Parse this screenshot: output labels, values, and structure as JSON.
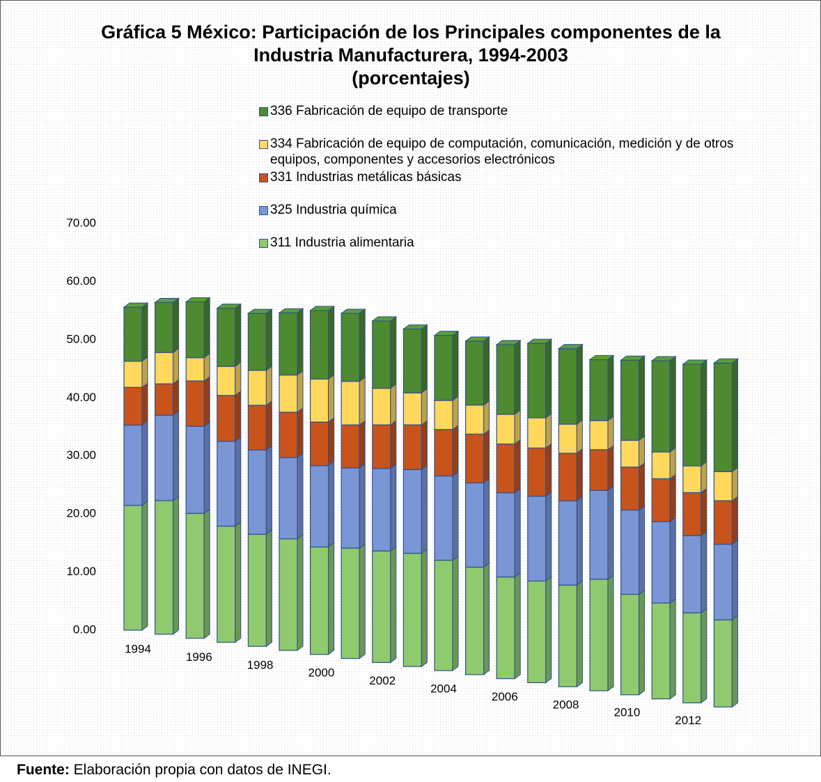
{
  "chart_data": {
    "type": "bar3d_stacked",
    "title": "Gráfica 5 México: Participación de los Principales componentes de la Industria Manufacturera, 1994-2003",
    "subtitle": "(porcentajes)",
    "categories": [
      "1994",
      null,
      "1996",
      null,
      "1998",
      null,
      "2000",
      null,
      "2002",
      null,
      "2004",
      null,
      "2006",
      null,
      "2008",
      null,
      "2010",
      null,
      "2012",
      null
    ],
    "series": [
      {
        "name": "311 Industria alimentaria",
        "color": "#8fca6e",
        "values": [
          21.5,
          23.0,
          21.5,
          20.0,
          19.3,
          19.2,
          18.5,
          19.0,
          19.2,
          19.5,
          19.0,
          18.5,
          17.5,
          17.5,
          17.5,
          19.2,
          17.3,
          16.5,
          15.5,
          15.0
        ]
      },
      {
        "name": "325 Industria química",
        "color": "#7b96d4",
        "values": [
          13.8,
          14.7,
          15.0,
          14.6,
          14.5,
          14.0,
          14.0,
          13.8,
          14.2,
          14.4,
          14.5,
          14.5,
          14.5,
          14.6,
          14.5,
          15.3,
          14.5,
          14.0,
          13.3,
          13.0
        ]
      },
      {
        "name": "331 Industrias metálicas básicas",
        "color": "#c8541c",
        "values": [
          6.5,
          5.4,
          7.8,
          7.9,
          7.7,
          7.8,
          7.5,
          7.4,
          7.5,
          7.7,
          8.0,
          8.4,
          8.4,
          8.3,
          8.2,
          7.0,
          7.4,
          7.4,
          7.4,
          7.5
        ]
      },
      {
        "name": "334 Fabricación de equipo de computación, comunicación, medición y de otros equipos, componentes y accesorios electrónicos",
        "color": "#ffd85c",
        "values": [
          4.5,
          5.4,
          4.0,
          5.0,
          6.0,
          6.4,
          7.4,
          7.5,
          6.3,
          5.5,
          5.0,
          5.0,
          5.1,
          5.2,
          5.0,
          5.0,
          4.6,
          4.6,
          4.6,
          5.0
        ]
      },
      {
        "name": "336 Fabricación de equipo de transporte",
        "color": "#4e8a2f",
        "values": [
          9.3,
          8.6,
          9.6,
          10.0,
          9.8,
          10.7,
          11.8,
          11.7,
          11.6,
          11.0,
          11.2,
          11.0,
          12.0,
          12.8,
          13.0,
          10.5,
          13.8,
          15.7,
          17.5,
          18.7
        ]
      }
    ],
    "ylim": [
      0,
      70
    ],
    "yticks": [
      {
        "value": 0,
        "label": "0.00"
      },
      {
        "value": 10,
        "label": "10.00"
      },
      {
        "value": 20,
        "label": "20.00"
      },
      {
        "value": 30,
        "label": "30.00"
      },
      {
        "value": 40,
        "label": "40.00"
      },
      {
        "value": 50,
        "label": "50.00"
      },
      {
        "value": 60,
        "label": "60.00"
      },
      {
        "value": 70,
        "label": "70.00"
      }
    ],
    "grid": false,
    "source_label": "Fuente:",
    "source_text": "Elaboración propia con datos de INEGI."
  }
}
